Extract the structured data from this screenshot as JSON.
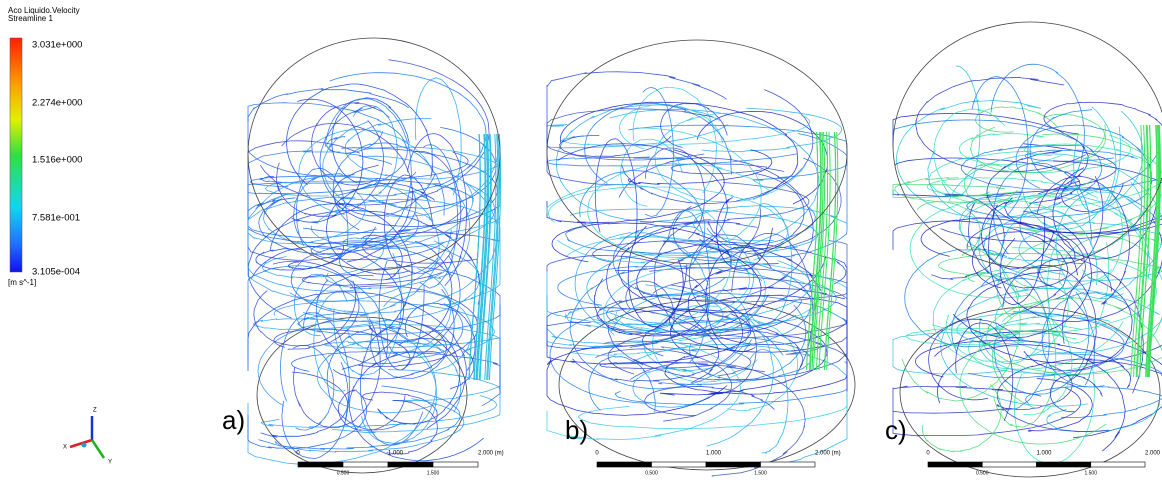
{
  "legend": {
    "title": "Aco Liquido.Velocity",
    "subtitle": "Streamline 1",
    "ticks": [
      "3.031e+000",
      "2.274e+000",
      "1.516e+000",
      "7.581e-001",
      "3.105e-004"
    ],
    "unit": "[m s^-1]"
  },
  "axes": {
    "z": "Z",
    "x": "X",
    "y": "Y"
  },
  "panels": [
    {
      "label": "a)",
      "scale": {
        "top": [
          "0",
          "1.000",
          "2.000 (m)"
        ],
        "bottom": [
          "0.500",
          "1.500"
        ]
      }
    },
    {
      "label": "b)",
      "scale": {
        "top": [
          "0",
          "1.000",
          "2.000 (m)"
        ],
        "bottom": [
          "0.500",
          "1.500"
        ]
      }
    },
    {
      "label": "c)",
      "scale": {
        "top": [
          "0",
          "1.000",
          "2.000 (m)"
        ],
        "bottom": [
          "0.500",
          "1.500"
        ]
      }
    }
  ]
}
